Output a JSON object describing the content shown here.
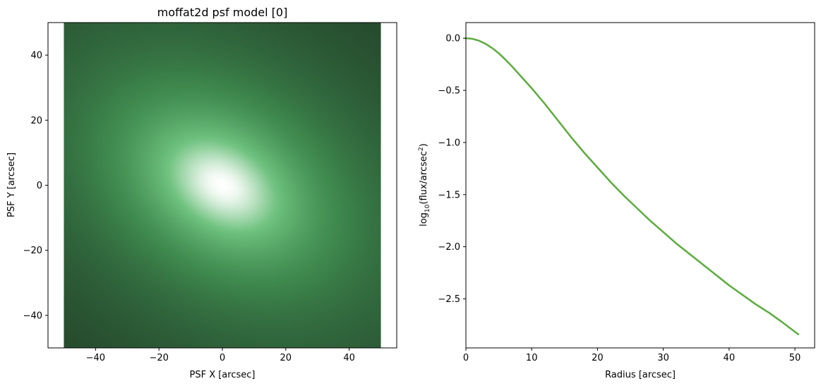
{
  "chart_data": [
    {
      "type": "heatmap",
      "title": "moffat2d psf model [0]",
      "xlabel": "PSF X [arcsec]",
      "ylabel": "PSF Y [arcsec]",
      "xlim": [
        -55,
        55
      ],
      "ylim": [
        -50,
        50
      ],
      "image_extent": [
        -50,
        50,
        -50,
        50
      ],
      "xticks": [
        -40,
        -20,
        0,
        20,
        40
      ],
      "yticks": [
        -40,
        -20,
        0,
        20,
        40
      ],
      "xtick_labels": [
        "−40",
        "−20",
        "0",
        "20",
        "40"
      ],
      "ytick_labels": [
        "−40",
        "−20",
        "0",
        "20",
        "40"
      ],
      "grid": false,
      "colormap": [
        "#000000",
        "#1f3a25",
        "#3f8a4f",
        "#6fc27f",
        "#ffffff"
      ],
      "model": {
        "profile": "moffat2d",
        "center": [
          0,
          0
        ],
        "position_angle_deg": -30,
        "major_width_arcsec": 19,
        "minor_width_arcsec": 13,
        "beta": 1.4
      }
    },
    {
      "type": "line",
      "xlabel": "Radius [arcsec]",
      "ylabel_parts": [
        "log",
        "10",
        "(flux/arcsec",
        "2",
        ")"
      ],
      "xlim": [
        0,
        53
      ],
      "ylim": [
        -2.97,
        0.15
      ],
      "xticks": [
        0,
        10,
        20,
        30,
        40,
        50
      ],
      "yticks": [
        0.0,
        -0.5,
        -1.0,
        -1.5,
        -2.0,
        -2.5
      ],
      "xtick_labels": [
        "0",
        "10",
        "20",
        "30",
        "40",
        "50"
      ],
      "ytick_labels": [
        "0.0",
        "−0.5",
        "−1.0",
        "−1.5",
        "−2.0",
        "−2.5"
      ],
      "grid": false,
      "series": [
        {
          "color": "#5aac3c",
          "x": [
            0,
            1,
            2,
            3,
            4,
            5,
            6,
            7,
            8,
            9,
            10,
            12,
            14,
            16,
            18,
            20,
            22,
            24,
            26,
            28,
            30,
            32,
            34,
            36,
            38,
            40,
            42,
            44,
            46,
            48,
            50.5
          ],
          "y": [
            0.0,
            -0.006,
            -0.024,
            -0.054,
            -0.095,
            -0.145,
            -0.205,
            -0.27,
            -0.34,
            -0.41,
            -0.48,
            -0.63,
            -0.79,
            -0.95,
            -1.1,
            -1.24,
            -1.38,
            -1.51,
            -1.63,
            -1.75,
            -1.86,
            -1.97,
            -2.07,
            -2.17,
            -2.27,
            -2.37,
            -2.46,
            -2.55,
            -2.63,
            -2.72,
            -2.84
          ]
        }
      ]
    }
  ]
}
